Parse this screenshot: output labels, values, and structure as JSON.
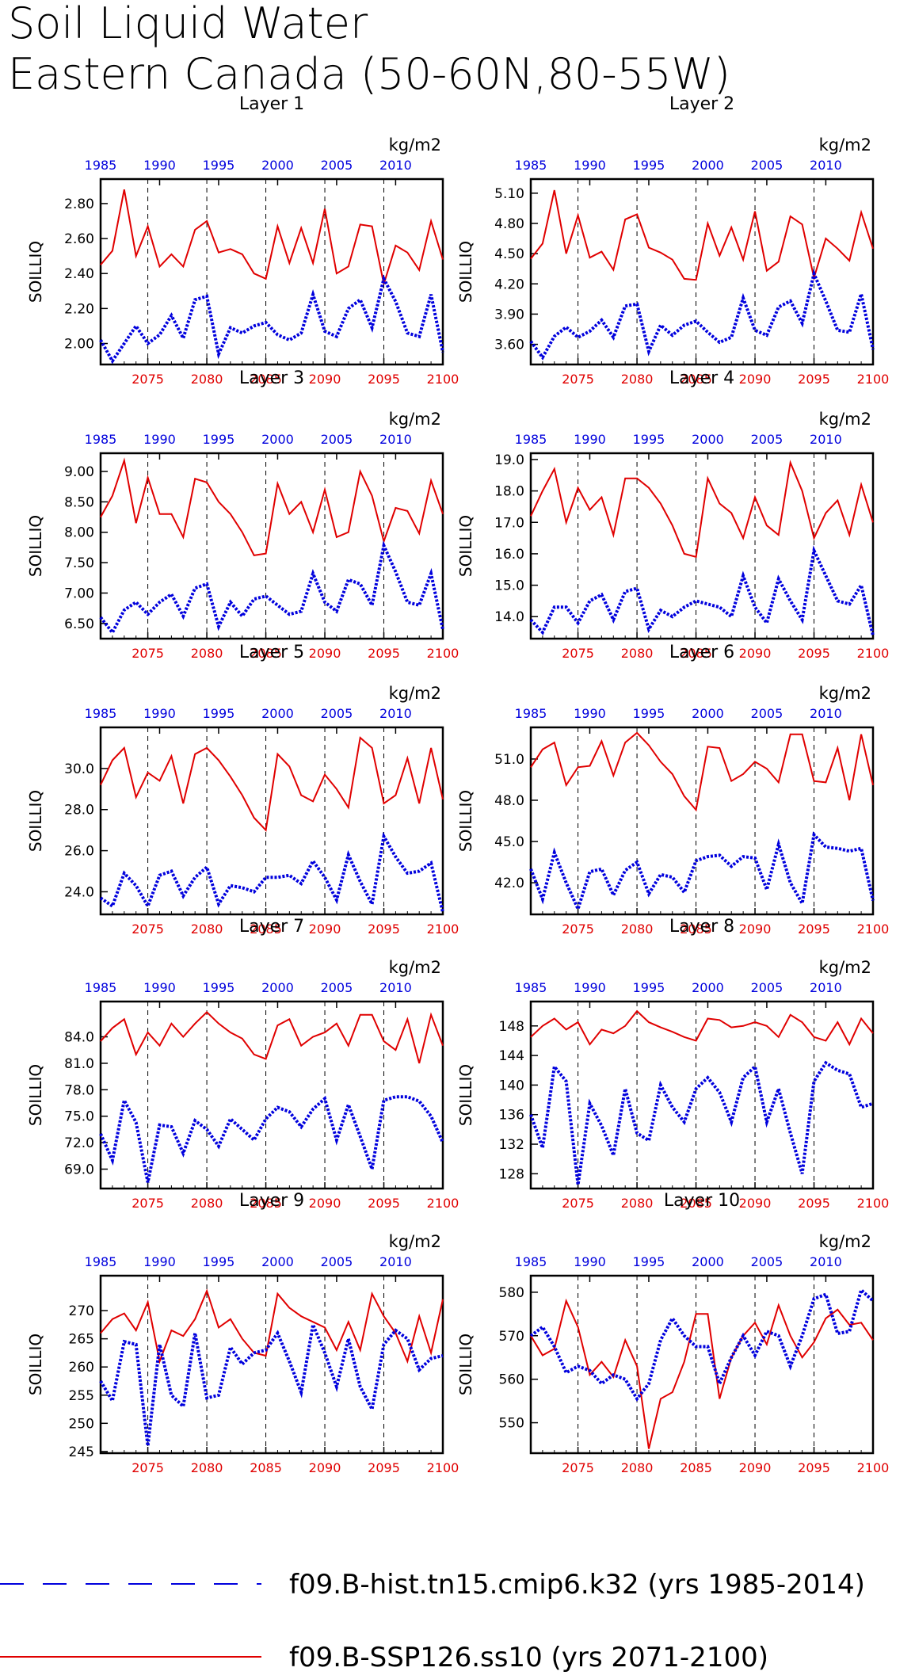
{
  "figure": {
    "title_line1": "Soil Liquid Water",
    "title_line2": "Eastern Canada (50-60N,80-55W)"
  },
  "legend": [
    {
      "label": "f09.B-hist.tn15.cmip6.k32 (yrs 1985-2014)",
      "color": "#0000dd",
      "style": "dashed"
    },
    {
      "label": "f09.B-SSP126.ss10 (yrs 2071-2100)",
      "color": "#e00000",
      "style": "solid"
    }
  ],
  "chart_data": [
    {
      "type": "line",
      "title": "Layer 1",
      "ylabel": "SOILLIQ",
      "units": "kg/m2",
      "x_bottom_ticks": [
        "2075",
        "2080",
        "2085",
        "2090",
        "2095",
        "2100"
      ],
      "x_top_ticks": [
        "1985",
        "1990",
        "1995",
        "2000",
        "2005",
        "2010"
      ],
      "y_ticks": [
        "2.00",
        "2.20",
        "2.40",
        "2.60",
        "2.80"
      ],
      "ylim": [
        1.88,
        2.94
      ],
      "series": [
        {
          "values": [
            2.45,
            2.53,
            2.88,
            2.5,
            2.67,
            2.44,
            2.51,
            2.44,
            2.65,
            2.7,
            2.52,
            2.54,
            2.51,
            2.4,
            2.37,
            2.67,
            2.46,
            2.66,
            2.46,
            2.77,
            2.4,
            2.44,
            2.68,
            2.67,
            2.34,
            2.56,
            2.52,
            2.42,
            2.7,
            2.48
          ]
        },
        {
          "values": [
            2.02,
            1.9,
            2.0,
            2.1,
            2.0,
            2.05,
            2.16,
            2.03,
            2.25,
            2.27,
            1.94,
            2.09,
            2.06,
            2.1,
            2.12,
            2.05,
            2.02,
            2.06,
            2.28,
            2.07,
            2.04,
            2.2,
            2.25,
            2.09,
            2.37,
            2.24,
            2.06,
            2.04,
            2.28,
            1.95
          ]
        }
      ]
    },
    {
      "type": "line",
      "title": "Layer 2",
      "ylabel": "SOILLIQ",
      "units": "kg/m2",
      "x_bottom_ticks": [
        "2075",
        "2080",
        "2085",
        "2090",
        "2095",
        "2100"
      ],
      "x_top_ticks": [
        "1985",
        "1990",
        "1995",
        "2000",
        "2005",
        "2010"
      ],
      "y_ticks": [
        "3.60",
        "3.90",
        "4.20",
        "4.50",
        "4.80",
        "5.10"
      ],
      "ylim": [
        3.4,
        5.24
      ],
      "series": [
        {
          "values": [
            4.45,
            4.6,
            5.13,
            4.5,
            4.88,
            4.46,
            4.52,
            4.34,
            4.84,
            4.89,
            4.56,
            4.51,
            4.44,
            4.25,
            4.24,
            4.8,
            4.48,
            4.76,
            4.44,
            4.92,
            4.33,
            4.42,
            4.87,
            4.79,
            4.26,
            4.65,
            4.55,
            4.43,
            4.91,
            4.55
          ]
        },
        {
          "values": [
            3.63,
            3.47,
            3.68,
            3.77,
            3.67,
            3.73,
            3.84,
            3.67,
            3.98,
            4.0,
            3.53,
            3.79,
            3.69,
            3.79,
            3.83,
            3.72,
            3.62,
            3.67,
            4.06,
            3.74,
            3.69,
            3.97,
            4.03,
            3.81,
            4.3,
            4.03,
            3.74,
            3.72,
            4.1,
            3.55
          ]
        }
      ]
    },
    {
      "type": "line",
      "title": "Layer 3",
      "ylabel": "SOILLIQ",
      "units": "kg/m2",
      "x_bottom_ticks": [
        "2075",
        "2080",
        "2085",
        "2090",
        "2095",
        "2100"
      ],
      "x_top_ticks": [
        "1985",
        "1990",
        "1995",
        "2000",
        "2005",
        "2010"
      ],
      "y_ticks": [
        "6.50",
        "7.00",
        "7.50",
        "8.00",
        "8.50",
        "9.00"
      ],
      "ylim": [
        6.25,
        9.3
      ],
      "series": [
        {
          "values": [
            8.25,
            8.6,
            9.18,
            8.15,
            8.9,
            8.3,
            8.3,
            7.92,
            8.88,
            8.82,
            8.5,
            8.3,
            8.0,
            7.62,
            7.65,
            8.8,
            8.3,
            8.5,
            8.0,
            8.7,
            7.92,
            8.0,
            9.0,
            8.6,
            7.85,
            8.4,
            8.35,
            7.98,
            8.85,
            8.3
          ]
        },
        {
          "values": [
            6.6,
            6.35,
            6.72,
            6.85,
            6.65,
            6.85,
            6.98,
            6.62,
            7.08,
            7.15,
            6.45,
            6.85,
            6.62,
            6.9,
            6.95,
            6.8,
            6.65,
            6.7,
            7.32,
            6.85,
            6.7,
            7.22,
            7.15,
            6.8,
            7.78,
            7.35,
            6.85,
            6.8,
            7.32,
            6.4
          ]
        }
      ]
    },
    {
      "type": "line",
      "title": "Layer 4",
      "ylabel": "SOILLIQ",
      "units": "kg/m2",
      "x_bottom_ticks": [
        "2075",
        "2080",
        "2085",
        "2090",
        "2095",
        "2100"
      ],
      "x_top_ticks": [
        "1985",
        "1990",
        "1995",
        "2000",
        "2005",
        "2010"
      ],
      "y_ticks": [
        "14.0",
        "15.0",
        "16.0",
        "17.0",
        "18.0",
        "19.0"
      ],
      "ylim": [
        13.3,
        19.2
      ],
      "series": [
        {
          "values": [
            17.2,
            18.0,
            18.7,
            17.0,
            18.1,
            17.4,
            17.8,
            16.6,
            18.4,
            18.4,
            18.1,
            17.6,
            16.9,
            16.0,
            15.9,
            18.4,
            17.6,
            17.3,
            16.5,
            17.8,
            16.9,
            16.6,
            18.9,
            18.0,
            16.5,
            17.3,
            17.7,
            16.6,
            18.2,
            17.0
          ]
        },
        {
          "values": [
            13.9,
            13.5,
            14.3,
            14.3,
            13.8,
            14.5,
            14.7,
            13.9,
            14.8,
            14.9,
            13.6,
            14.2,
            14.0,
            14.3,
            14.5,
            14.4,
            14.3,
            14.0,
            15.3,
            14.3,
            13.8,
            15.2,
            14.5,
            13.9,
            16.1,
            15.3,
            14.5,
            14.4,
            15.0,
            13.4
          ]
        }
      ]
    },
    {
      "type": "line",
      "title": "Layer 5",
      "ylabel": "SOILLIQ",
      "units": "kg/m2",
      "x_bottom_ticks": [
        "2075",
        "2080",
        "2085",
        "2090",
        "2095",
        "2100"
      ],
      "x_top_ticks": [
        "1985",
        "1990",
        "1995",
        "2000",
        "2005",
        "2010"
      ],
      "y_ticks": [
        "24.0",
        "26.0",
        "28.0",
        "30.0"
      ],
      "ylim": [
        22.9,
        32.0
      ],
      "series": [
        {
          "values": [
            29.2,
            30.4,
            31.0,
            28.6,
            29.8,
            29.4,
            30.6,
            28.3,
            30.7,
            31.0,
            30.4,
            29.6,
            28.7,
            27.6,
            27.0,
            30.7,
            30.1,
            28.7,
            28.4,
            29.7,
            29.0,
            28.1,
            31.5,
            31.0,
            28.3,
            28.7,
            30.5,
            28.3,
            31.0,
            28.5
          ]
        },
        {
          "values": [
            23.7,
            23.3,
            24.9,
            24.3,
            23.3,
            24.8,
            25.0,
            23.8,
            24.7,
            25.2,
            23.4,
            24.3,
            24.2,
            24.0,
            24.7,
            24.7,
            24.8,
            24.4,
            25.5,
            24.7,
            23.6,
            25.8,
            24.5,
            23.4,
            26.7,
            25.7,
            24.9,
            25.0,
            25.4,
            23.0
          ]
        }
      ]
    },
    {
      "type": "line",
      "title": "Layer 6",
      "ylabel": "SOILLIQ",
      "units": "kg/m2",
      "x_bottom_ticks": [
        "2075",
        "2080",
        "2085",
        "2090",
        "2095",
        "2100"
      ],
      "x_top_ticks": [
        "1985",
        "1990",
        "1995",
        "2000",
        "2005",
        "2010"
      ],
      "y_ticks": [
        "42.0",
        "45.0",
        "48.0",
        "51.0"
      ],
      "ylim": [
        39.7,
        53.3
      ],
      "series": [
        {
          "values": [
            50.4,
            51.7,
            52.2,
            49.1,
            50.4,
            50.5,
            52.3,
            49.8,
            52.2,
            52.9,
            52.0,
            50.8,
            49.9,
            48.3,
            47.3,
            51.9,
            51.8,
            49.4,
            49.9,
            50.8,
            50.3,
            49.3,
            52.8,
            52.8,
            49.4,
            49.3,
            51.8,
            48.0,
            52.8,
            49.1
          ]
        },
        {
          "values": [
            43.0,
            40.8,
            44.2,
            42.0,
            40.1,
            42.8,
            43.0,
            41.1,
            42.9,
            43.5,
            41.2,
            42.6,
            42.4,
            41.3,
            43.6,
            43.9,
            44.0,
            43.2,
            43.9,
            43.8,
            41.5,
            44.8,
            42.0,
            40.5,
            45.5,
            44.6,
            44.5,
            44.3,
            44.5,
            40.7
          ]
        }
      ]
    },
    {
      "type": "line",
      "title": "Layer 7",
      "ylabel": "SOILLIQ",
      "units": "kg/m2",
      "x_bottom_ticks": [
        "2075",
        "2080",
        "2085",
        "2090",
        "2095",
        "2100"
      ],
      "x_top_ticks": [
        "1985",
        "1990",
        "1995",
        "2000",
        "2005",
        "2010"
      ],
      "y_ticks": [
        "69.0",
        "72.0",
        "75.0",
        "78.0",
        "81.0",
        "84.0"
      ],
      "ylim": [
        66.8,
        88.0
      ],
      "series": [
        {
          "values": [
            83.5,
            85.0,
            86.0,
            82.0,
            84.5,
            83.0,
            85.5,
            84.0,
            85.5,
            86.8,
            85.5,
            84.5,
            83.8,
            82.0,
            81.5,
            85.3,
            86.0,
            83.0,
            84.0,
            84.5,
            85.5,
            83.0,
            86.5,
            86.5,
            83.5,
            82.5,
            86.0,
            81.0,
            86.5,
            83.0
          ]
        },
        {
          "values": [
            73.0,
            70.0,
            76.8,
            74.3,
            67.5,
            74.0,
            73.8,
            70.8,
            74.5,
            73.5,
            71.6,
            74.7,
            73.5,
            72.3,
            74.7,
            76.0,
            75.5,
            73.8,
            75.8,
            77.0,
            72.3,
            76.3,
            72.7,
            69.0,
            76.8,
            77.2,
            77.2,
            76.7,
            75.0,
            72.0
          ]
        }
      ]
    },
    {
      "type": "line",
      "title": "Layer 8",
      "ylabel": "SOILLIQ",
      "units": "kg/m2",
      "x_bottom_ticks": [
        "2075",
        "2080",
        "2085",
        "2090",
        "2095",
        "2100"
      ],
      "x_top_ticks": [
        "1985",
        "1990",
        "1995",
        "2000",
        "2005",
        "2010"
      ],
      "y_ticks": [
        "128",
        "132",
        "136",
        "140",
        "144",
        "148"
      ],
      "ylim": [
        126.0,
        151.3
      ],
      "series": [
        {
          "values": [
            146.5,
            148.0,
            149.0,
            147.5,
            148.5,
            145.5,
            147.5,
            147.0,
            148.0,
            150.0,
            148.5,
            147.8,
            147.2,
            146.5,
            146.0,
            149.0,
            148.8,
            147.8,
            148.0,
            148.5,
            148.0,
            146.5,
            149.5,
            148.5,
            146.5,
            146.0,
            148.5,
            145.5,
            149.0,
            147.0
          ]
        },
        {
          "values": [
            136.0,
            131.5,
            142.5,
            140.5,
            126.5,
            137.5,
            134.5,
            130.5,
            139.5,
            133.5,
            132.5,
            140.0,
            137.0,
            135.0,
            139.5,
            141.0,
            139.0,
            135.0,
            141.0,
            142.5,
            135.0,
            139.5,
            133.5,
            128.0,
            140.5,
            143.0,
            142.0,
            141.5,
            137.0,
            137.5
          ]
        }
      ]
    },
    {
      "type": "line",
      "title": "Layer 9",
      "ylabel": "SOILLIQ",
      "units": "kg/m2",
      "x_bottom_ticks": [
        "2075",
        "2080",
        "2085",
        "2090",
        "2095",
        "2100"
      ],
      "x_top_ticks": [
        "1985",
        "1990",
        "1995",
        "2000",
        "2005",
        "2010"
      ],
      "y_ticks": [
        "245",
        "250",
        "255",
        "260",
        "265",
        "270"
      ],
      "ylim": [
        244.7,
        276.2
      ],
      "series": [
        {
          "values": [
            266.0,
            268.5,
            269.5,
            266.5,
            271.5,
            261.0,
            266.5,
            265.5,
            268.5,
            273.5,
            267.0,
            268.5,
            265.0,
            262.5,
            262.0,
            273.0,
            270.5,
            269.0,
            268.0,
            267.0,
            263.0,
            268.0,
            263.0,
            273.0,
            269.0,
            266.0,
            261.0,
            269.0,
            262.5,
            272.0
          ]
        },
        {
          "values": [
            257.5,
            254.0,
            264.5,
            264.0,
            246.0,
            264.0,
            255.0,
            253.0,
            266.0,
            254.5,
            255.0,
            263.5,
            260.5,
            262.5,
            263.0,
            266.0,
            261.0,
            255.5,
            267.5,
            262.5,
            256.5,
            265.0,
            256.5,
            252.5,
            264.0,
            266.5,
            265.0,
            259.5,
            261.5,
            262.0
          ]
        }
      ]
    },
    {
      "type": "line",
      "title": "Layer 10",
      "ylabel": "SOILLIQ",
      "units": "kg/m2",
      "x_bottom_ticks": [
        "2075",
        "2080",
        "2085",
        "2090",
        "2095",
        "2100"
      ],
      "x_top_ticks": [
        "1985",
        "1990",
        "1995",
        "2000",
        "2005",
        "2010"
      ],
      "y_ticks": [
        "550",
        "560",
        "570",
        "580"
      ],
      "ylim": [
        543.0,
        583.8
      ],
      "series": [
        {
          "values": [
            570.0,
            565.5,
            567.0,
            578.0,
            572.0,
            561.0,
            564.0,
            560.5,
            569.0,
            563.0,
            544.0,
            555.5,
            557.0,
            564.0,
            575.0,
            575.0,
            555.5,
            565.0,
            570.0,
            573.0,
            568.0,
            577.0,
            570.0,
            565.0,
            568.5,
            574.0,
            576.0,
            572.5,
            573.0,
            569.0
          ]
        },
        {
          "values": [
            570.0,
            572.0,
            567.5,
            561.5,
            563.0,
            562.0,
            559.0,
            561.0,
            560.0,
            555.5,
            559.0,
            569.0,
            574.0,
            570.0,
            567.5,
            567.5,
            559.0,
            565.0,
            570.0,
            565.5,
            571.0,
            570.0,
            563.0,
            570.0,
            578.5,
            579.5,
            570.5,
            571.0,
            580.5,
            578.0
          ]
        }
      ]
    }
  ]
}
